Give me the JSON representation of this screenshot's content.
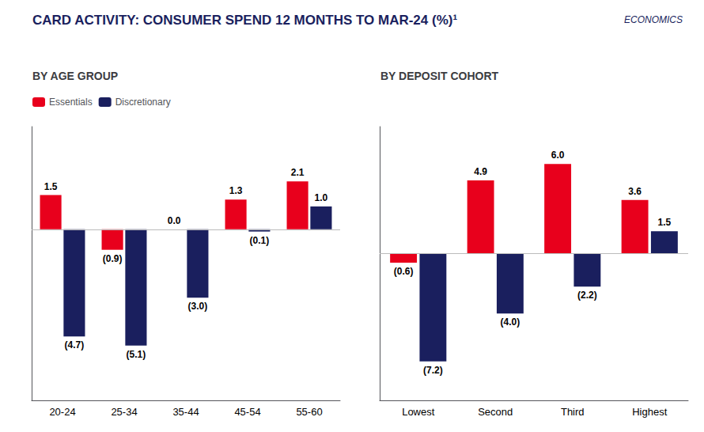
{
  "chart_data": [
    {
      "type": "bar",
      "title": "CARD ACTIVITY: CONSUMER SPEND 12 MONTHS TO MAR-24 (%)¹",
      "annotations": [
        "ECONOMICS"
      ],
      "subtitle": "BY AGE GROUP",
      "categories": [
        "20-24",
        "25-34",
        "35-44",
        "45-54",
        "55-60"
      ],
      "series": [
        {
          "name": "Essentials",
          "color": "#E8001C",
          "values": [
            1.5,
            -0.9,
            0.0,
            1.3,
            2.1
          ],
          "value_labels": [
            "1.5",
            "(0.9)",
            "0.0",
            "1.3",
            "2.1"
          ]
        },
        {
          "name": "Discretionary",
          "color": "#1A1F5E",
          "values": [
            -4.7,
            -5.1,
            -3.0,
            -0.1,
            1.0
          ],
          "value_labels": [
            "(4.7)",
            "(5.1)",
            "(3.0)",
            "(0.1)",
            "1.0"
          ]
        }
      ],
      "ylim": [
        -7.5,
        4.5
      ],
      "grid": false,
      "legend": "upper left",
      "data_labels": true,
      "tick_labels": "x"
    },
    {
      "type": "bar",
      "subtitle": "BY DEPOSIT COHORT",
      "categories": [
        "Lowest",
        "Second",
        "Third",
        "Highest"
      ],
      "series": [
        {
          "name": "Essentials",
          "color": "#E8001C",
          "values": [
            -0.6,
            4.9,
            6.0,
            3.6
          ],
          "value_labels": [
            "(0.6)",
            "4.9",
            "6.0",
            "3.6"
          ]
        },
        {
          "name": "Discretionary",
          "color": "#1A1F5E",
          "values": [
            -7.2,
            -4.0,
            -2.2,
            1.5
          ],
          "value_labels": [
            "(7.2)",
            "(4.0)",
            "(2.2)",
            "1.5"
          ]
        }
      ],
      "ylim": [
        -9.8,
        8.5
      ],
      "grid": false,
      "data_labels": true,
      "tick_labels": "x"
    }
  ]
}
